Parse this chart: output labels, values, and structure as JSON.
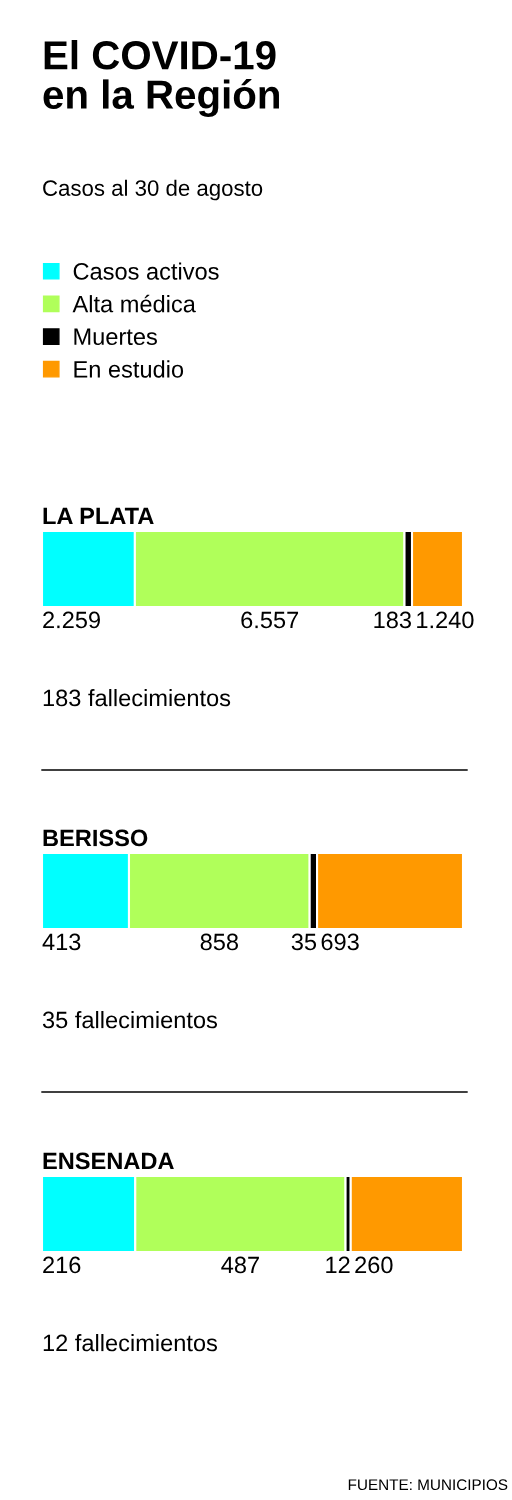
{
  "chart_data": [
    {
      "type": "bar",
      "orientation": "horizontal",
      "stacked": true,
      "title": "El COVID-19\nen la Región",
      "subtitle": "Casos al 30 de agosto",
      "legend": "top left",
      "categories": [
        "LA PLATA"
      ],
      "series": [
        {
          "name": "Casos activos",
          "color": "#00ffff",
          "values": [
            2259
          ],
          "value_labels": [
            "2.259"
          ]
        },
        {
          "name": "Alta médica",
          "color": "#b0ff5a",
          "values": [
            6557
          ],
          "value_labels": [
            "6.557"
          ]
        },
        {
          "name": "Muertes",
          "color": "#000000",
          "values": [
            183
          ],
          "value_labels": [
            "183"
          ]
        },
        {
          "name": "En estudio",
          "color": "#ff9900",
          "values": [
            1240
          ],
          "value_labels": [
            "1.240"
          ]
        }
      ],
      "annotations": [
        "183 fallecimientos"
      ]
    },
    {
      "type": "bar",
      "orientation": "horizontal",
      "stacked": true,
      "data_labels": true,
      "categories": [
        "BERISSO"
      ],
      "series": [
        {
          "color": "#00ffff",
          "values": [
            413
          ]
        },
        {
          "color": "#b0ff5a",
          "values": [
            858
          ]
        },
        {
          "color": "#000000",
          "values": [
            35
          ]
        },
        {
          "color": "#ff9900",
          "values": [
            693
          ]
        }
      ],
      "annotations": [
        "35 fallecimientos"
      ]
    },
    {
      "type": "bar",
      "orientation": "horizontal",
      "stacked": true,
      "data_labels": true,
      "categories": [
        "ENSENADA"
      ],
      "series": [
        {
          "color": "#00ffff",
          "values": [
            216
          ]
        },
        {
          "color": "#b0ff5a",
          "values": [
            487
          ]
        },
        {
          "color": "#000000",
          "values": [
            12
          ]
        },
        {
          "color": "#ff9900",
          "values": [
            260
          ]
        }
      ],
      "annotations": [
        "12 fallecimientos",
        "FUENTE: MUNICIPIOS"
      ]
    }
  ]
}
